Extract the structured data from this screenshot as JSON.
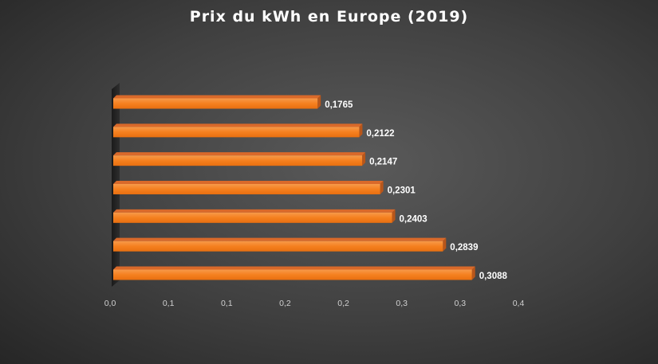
{
  "chart_data": {
    "type": "bar",
    "orientation": "horizontal",
    "title": "Prix du kWh en Europe (2019)",
    "categories": [
      "",
      "",
      "",
      "",
      "",
      "",
      ""
    ],
    "values": [
      0.1765,
      0.2122,
      0.2147,
      0.2301,
      0.2403,
      0.2839,
      0.3088
    ],
    "data_labels": [
      "0,1765",
      "0,2122",
      "0,2147",
      "0,2301",
      "0,2403",
      "0,2839",
      "0,3088"
    ],
    "xlim": [
      0,
      0.35
    ],
    "x_ticks": [
      0,
      0.05,
      0.1,
      0.15,
      0.2,
      0.25,
      0.3,
      0.35
    ],
    "x_tick_labels": [
      "0,0",
      "0,1",
      "0,1",
      "0,2",
      "0,2",
      "0,3",
      "0,3",
      "0,4"
    ],
    "xlabel": "",
    "ylabel": "",
    "grid": false,
    "legend": "none",
    "colors": {
      "bar": "#f47a1f",
      "bar_top": "#d9692a",
      "bar_side": "#b8561a",
      "text": "#ffffff",
      "tick": "#d0d0d0"
    }
  }
}
